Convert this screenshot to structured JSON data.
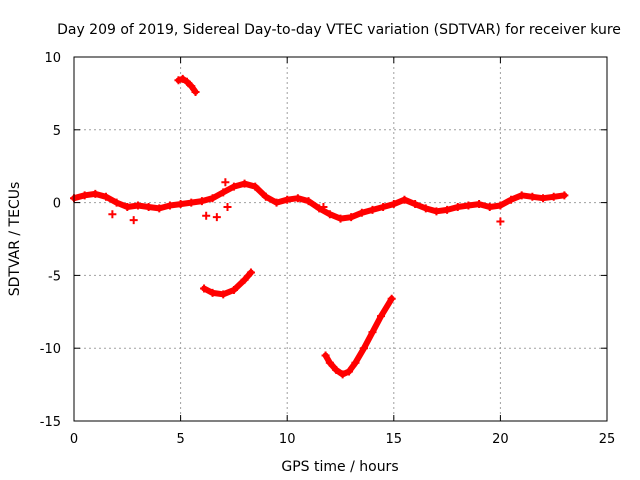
{
  "chart_data": {
    "type": "scatter",
    "title": "Day 209 of 2019, Sidereal Day-to-day VTEC variation (SDTVAR) for receiver kure",
    "xlabel": "GPS time / hours",
    "ylabel": "SDTVAR / TECUs",
    "xlim": [
      0,
      25
    ],
    "ylim": [
      -15,
      10
    ],
    "xticks": [
      0,
      5,
      10,
      15,
      20,
      25
    ],
    "yticks": [
      -15,
      -10,
      -5,
      0,
      5,
      10
    ],
    "grid": true,
    "marker_color": "#ff0000",
    "series": [
      {
        "name": "main",
        "x": [
          0.0,
          0.5,
          1.0,
          1.5,
          2.0,
          2.5,
          3.0,
          3.5,
          4.0,
          4.5,
          5.0,
          5.5,
          6.0,
          6.5,
          7.0,
          7.5,
          8.0,
          8.5,
          9.0,
          9.5,
          10.0,
          10.5,
          11.0,
          11.5,
          12.0,
          12.5,
          13.0,
          13.5,
          14.0,
          14.5,
          15.0,
          15.5,
          16.0,
          16.5,
          17.0,
          17.5,
          18.0,
          18.5,
          19.0,
          19.5,
          20.0,
          20.5,
          21.0,
          21.5,
          22.0,
          22.5,
          23.0
        ],
        "y": [
          0.3,
          0.5,
          0.6,
          0.4,
          0.0,
          -0.3,
          -0.2,
          -0.3,
          -0.4,
          -0.2,
          -0.1,
          0.0,
          0.1,
          0.3,
          0.7,
          1.1,
          1.3,
          1.1,
          0.4,
          0.0,
          0.2,
          0.3,
          0.1,
          -0.4,
          -0.8,
          -1.1,
          -1.0,
          -0.7,
          -0.5,
          -0.3,
          -0.1,
          0.2,
          -0.1,
          -0.4,
          -0.6,
          -0.5,
          -0.3,
          -0.2,
          -0.1,
          -0.3,
          -0.2,
          0.2,
          0.5,
          0.4,
          0.3,
          0.4,
          0.5
        ]
      },
      {
        "name": "segment-a",
        "x": [
          4.9,
          5.1,
          5.3,
          5.5,
          5.7
        ],
        "y": [
          8.4,
          8.5,
          8.3,
          8.0,
          7.6
        ]
      },
      {
        "name": "segment-b",
        "x": [
          6.1,
          6.5,
          7.0,
          7.5,
          8.0,
          8.3
        ],
        "y": [
          -5.9,
          -6.2,
          -6.3,
          -6.0,
          -5.3,
          -4.8
        ]
      },
      {
        "name": "segment-c",
        "x": [
          11.8,
          12.0,
          12.3,
          12.6,
          12.9,
          13.2,
          13.6,
          14.0,
          14.4,
          14.9
        ],
        "y": [
          -10.5,
          -11.0,
          -11.5,
          -11.8,
          -11.6,
          -11.0,
          -10.0,
          -8.9,
          -7.8,
          -6.6
        ]
      },
      {
        "name": "outliers",
        "x": [
          1.8,
          2.8,
          6.2,
          6.7,
          7.1,
          7.2,
          11.7,
          20.0
        ],
        "y": [
          -0.8,
          -1.2,
          -0.9,
          -1.0,
          1.4,
          -0.3,
          -0.3,
          -1.3
        ]
      }
    ]
  }
}
